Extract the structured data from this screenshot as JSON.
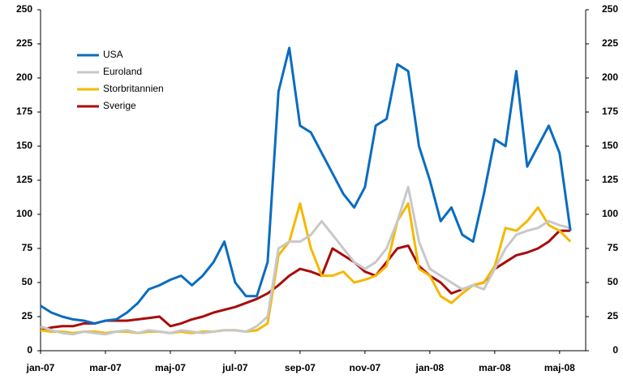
{
  "chart_data": {
    "type": "line",
    "categories": [
      "jan-07",
      null,
      null,
      null,
      null,
      null,
      "mar-07",
      null,
      null,
      null,
      null,
      null,
      "maj-07",
      null,
      null,
      null,
      null,
      null,
      "jul-07",
      null,
      null,
      null,
      null,
      null,
      "sep-07",
      null,
      null,
      null,
      null,
      null,
      "nov-07",
      null,
      null,
      null,
      null,
      null,
      "jan-08",
      null,
      null,
      null,
      null,
      null,
      "mar-08",
      null,
      null,
      null,
      null,
      null,
      "maj-08",
      null
    ],
    "series": [
      {
        "name": "USA",
        "color": "#0a6cc0",
        "values": [
          33,
          28,
          25,
          23,
          22,
          20,
          22,
          23,
          28,
          35,
          45,
          48,
          52,
          55,
          48,
          55,
          65,
          80,
          50,
          40,
          40,
          65,
          190,
          222,
          165,
          160,
          145,
          130,
          115,
          105,
          120,
          165,
          170,
          210,
          205,
          150,
          125,
          95,
          105,
          85,
          80,
          115,
          155,
          150,
          205,
          135,
          150,
          165,
          145,
          88
        ]
      },
      {
        "name": "Euroland",
        "color": "#c8c8c8",
        "values": [
          18,
          15,
          13,
          12,
          14,
          13,
          12,
          14,
          15,
          13,
          15,
          14,
          13,
          15,
          14,
          13,
          14,
          15,
          15,
          14,
          18,
          25,
          75,
          80,
          80,
          85,
          95,
          85,
          75,
          65,
          60,
          65,
          75,
          95,
          120,
          80,
          60,
          55,
          50,
          45,
          48,
          45,
          60,
          75,
          85,
          88,
          90,
          95,
          92,
          90
        ]
      },
      {
        "name": "Storbritannien",
        "color": "#f5b800",
        "values": [
          15,
          14,
          14,
          13,
          14,
          14,
          13,
          14,
          14,
          13,
          14,
          14,
          13,
          14,
          13,
          14,
          14,
          15,
          15,
          14,
          15,
          20,
          70,
          80,
          108,
          75,
          55,
          55,
          58,
          50,
          52,
          55,
          62,
          95,
          108,
          60,
          55,
          40,
          35,
          42,
          48,
          50,
          62,
          90,
          88,
          95,
          105,
          92,
          88,
          80
        ]
      },
      {
        "name": "Sverige",
        "color": "#a80c0c",
        "values": [
          15,
          17,
          18,
          18,
          20,
          20,
          22,
          22,
          22,
          23,
          24,
          25,
          18,
          20,
          23,
          25,
          28,
          30,
          32,
          35,
          38,
          42,
          48,
          55,
          60,
          58,
          55,
          75,
          70,
          65,
          58,
          55,
          65,
          75,
          77,
          62,
          55,
          50,
          42,
          45,
          48,
          50,
          60,
          65,
          70,
          72,
          75,
          80,
          88,
          88
        ]
      }
    ],
    "ylim": [
      0,
      250
    ],
    "yticks": [
      0,
      25,
      50,
      75,
      100,
      125,
      150,
      175,
      200,
      225,
      250
    ],
    "y2lim": [
      0,
      250
    ],
    "y2ticks": [
      0,
      25,
      50,
      75,
      100,
      125,
      150,
      175,
      200,
      225,
      250
    ],
    "legend": "upper-left"
  }
}
